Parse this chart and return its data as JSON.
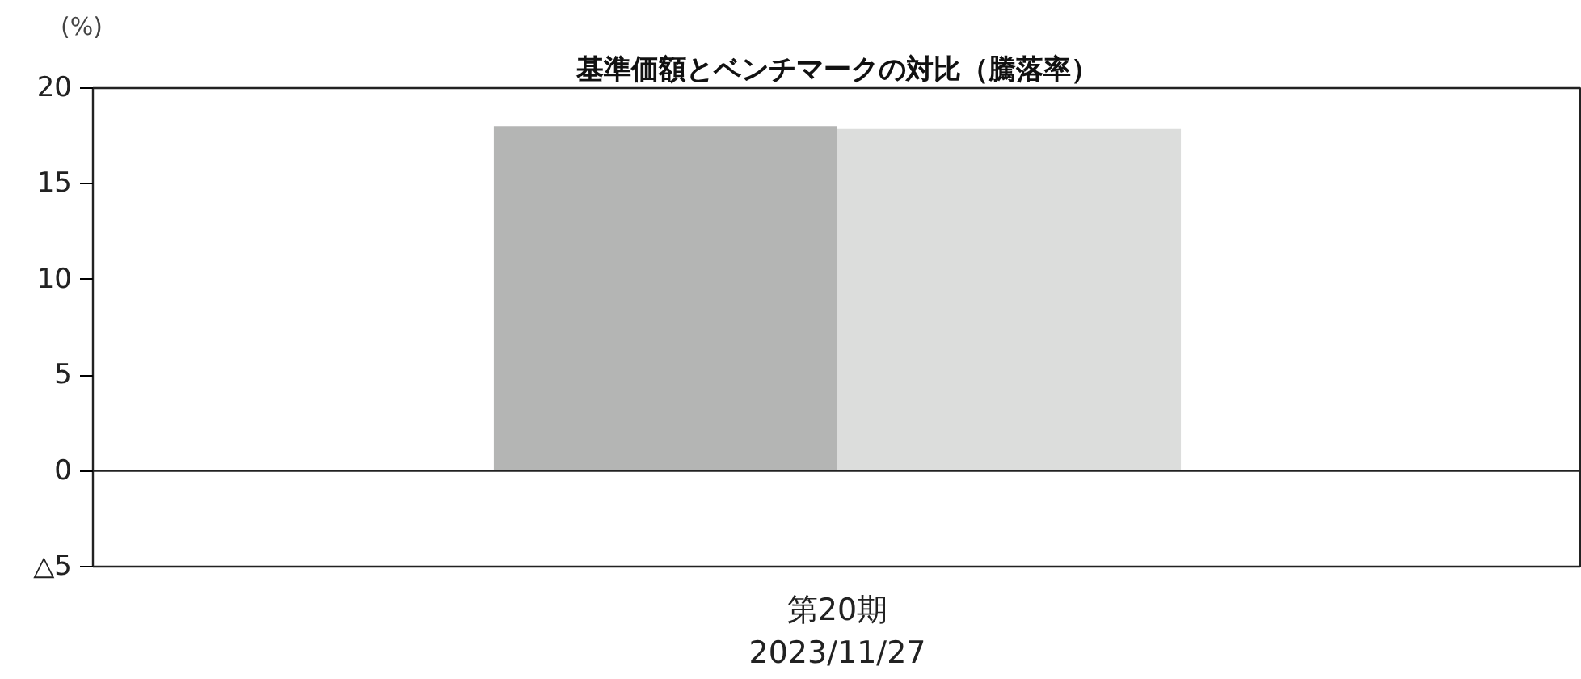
{
  "chart_data": {
    "type": "bar",
    "title": "基準価額とベンチマークの対比（騰落率）",
    "ylabel": "(%)",
    "categories": [
      "第20期\n2023/11/27"
    ],
    "series": [
      {
        "color": "#b4b5b4",
        "values": [
          18.0
        ]
      },
      {
        "color": "#dcdddc",
        "values": [
          17.9
        ]
      }
    ],
    "ylim": [
      -5,
      20
    ],
    "yticks": [
      {
        "value": -5,
        "label": "△5"
      },
      0,
      5,
      10,
      15,
      20
    ],
    "ref_lines": [
      {
        "axis": "y",
        "value": 0,
        "color": "#222222"
      }
    ],
    "grid": false
  }
}
